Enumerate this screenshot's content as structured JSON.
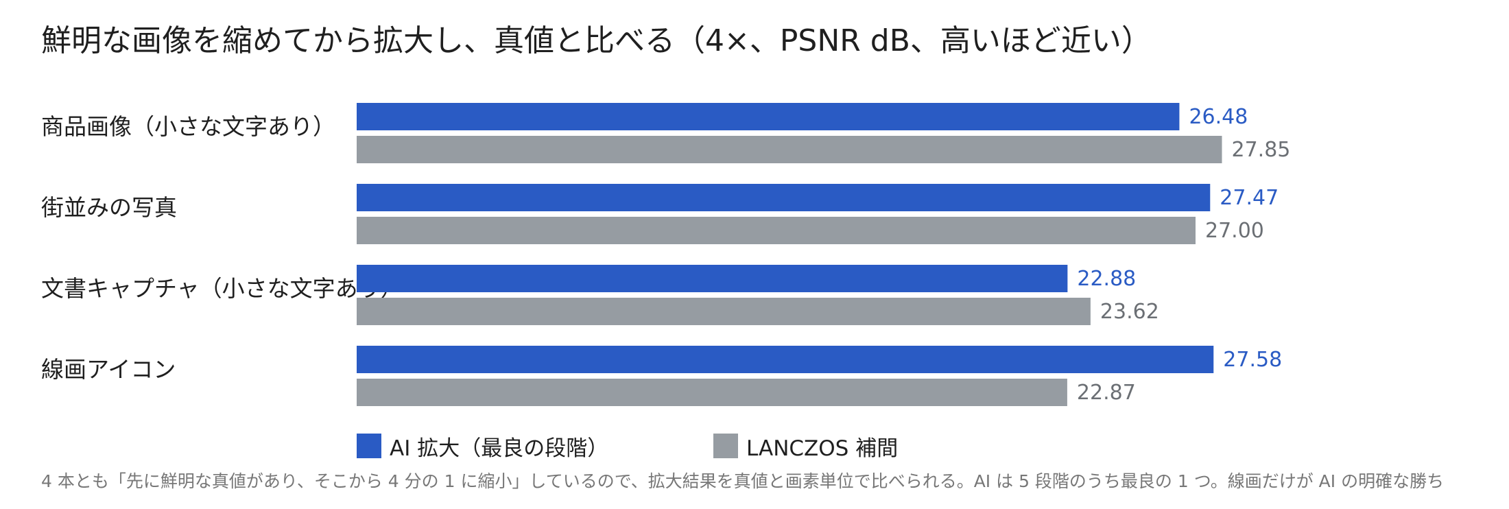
{
  "title": "鮮明な画像を縮めてから拡大し、真値と比べる（4×、PSNR dB、高いほど近い）",
  "footnote": "4 本とも「先に鮮明な真値があり、そこから 4 分の 1 に縮小」しているので、拡大結果を真値と画素単位で比べられる。AI は 5 段階のうち最良の 1 つ。線画だけが AI の明確な勝ち",
  "colors": {
    "ai": "#2a5bc4",
    "lanczos": "#969ca2",
    "ai_text": "#2a5bc4",
    "lanczos_text": "#6b6f74"
  },
  "chart_data": {
    "type": "bar",
    "orientation": "horizontal",
    "title": "鮮明な画像を縮めてから拡大し、真値と比べる（4×、PSNR dB、高いほど近い）",
    "categories": [
      "商品画像（小さな文字あり）",
      "街並みの写真",
      "文書キャプチャ（小さな文字あり）",
      "線画アイコン"
    ],
    "series": [
      {
        "name": "AI 拡大（最良の段階）",
        "values": [
          26.48,
          27.47,
          22.88,
          27.58
        ],
        "labels": [
          "26.48",
          "27.47",
          "22.88",
          "27.58"
        ]
      },
      {
        "name": "LANCZOS 補間",
        "values": [
          27.85,
          27.0,
          23.62,
          22.87
        ],
        "labels": [
          "27.85",
          "27.00",
          "23.62",
          "22.87"
        ]
      }
    ],
    "xlim": [
      0,
      28.7
    ],
    "grid": false,
    "legend": "bottom"
  }
}
